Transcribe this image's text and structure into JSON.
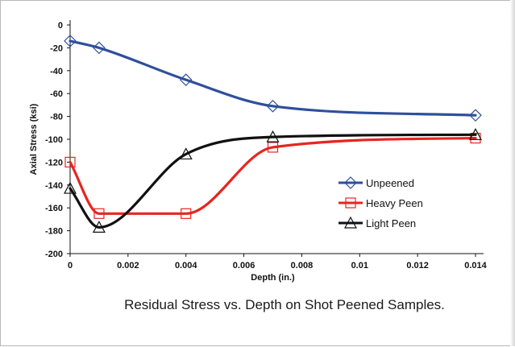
{
  "caption": "Residual Stress vs. Depth on Shot Peened Samples.",
  "chart_data": {
    "type": "line",
    "title": "",
    "xlabel": "Depth (in.)",
    "ylabel": "Axial Stress (ksi)",
    "xlim": [
      0,
      0.014
    ],
    "ylim": [
      -200,
      0
    ],
    "x_ticks": [
      0,
      0.002,
      0.004,
      0.006,
      0.008,
      0.01,
      0.012,
      0.014
    ],
    "x_tick_labels": [
      "0",
      "0.002",
      "0.004",
      "0.006",
      "0.008",
      "0.01",
      "0.012",
      "0.014"
    ],
    "y_ticks": [
      0,
      -20,
      -40,
      -60,
      -80,
      -100,
      -120,
      -140,
      -160,
      -180,
      -200
    ],
    "y_tick_labels": [
      "0",
      "-20",
      "-40",
      "-60",
      "-80",
      "-100",
      "-120",
      "-140",
      "-160",
      "-180",
      "-200"
    ],
    "grid": false,
    "legend_position": "right",
    "series": [
      {
        "name": "Unpeened",
        "color": "#2e4f9c",
        "marker": "diamond",
        "x": [
          0,
          0.001,
          0.004,
          0.007,
          0.014
        ],
        "y": [
          -14,
          -20,
          -48,
          -71,
          -79
        ]
      },
      {
        "name": "Heavy Peen",
        "color": "#e8251f",
        "marker": "square",
        "x": [
          0,
          0.001,
          0.004,
          0.007,
          0.014
        ],
        "y": [
          -120,
          -165,
          -165,
          -107,
          -99
        ]
      },
      {
        "name": "Light Peen",
        "color": "#111111",
        "marker": "triangle",
        "x": [
          0,
          0.001,
          0.004,
          0.007,
          0.014
        ],
        "y": [
          -143,
          -177,
          -113,
          -98,
          -96
        ]
      }
    ]
  }
}
